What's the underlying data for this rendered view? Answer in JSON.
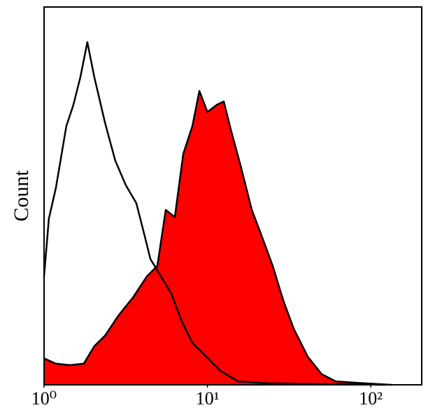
{
  "chart_data": {
    "type": "histogram-overlay",
    "y_label": "Count",
    "x_scale": "log",
    "xlim": [
      1,
      205
    ],
    "ylim": [
      0,
      100
    ],
    "xticks": [
      {
        "value": 1,
        "label": "10⁰"
      },
      {
        "value": 10,
        "label": "10¹"
      },
      {
        "value": 100,
        "label": "10²"
      }
    ],
    "grid": false,
    "series": [
      {
        "color": "#ff0000",
        "line_color": "#000000",
        "filled": true,
        "x": [
          1,
          1.18,
          1.44,
          1.75,
          2.03,
          2.36,
          2.87,
          3.5,
          4.26,
          4.94,
          5.56,
          6.32,
          7.11,
          8.09,
          8.93,
          10,
          11.4,
          12.6,
          13.9,
          16.1,
          18.7,
          21.7,
          25.1,
          29.2,
          33.8,
          41.2,
          50.1,
          61.1,
          90.6,
          134
        ],
        "values": [
          7.0,
          5.6,
          5.2,
          5.6,
          10.2,
          13,
          18.5,
          23.1,
          28.7,
          31.5,
          46.3,
          44.4,
          61.1,
          68.5,
          77.8,
          72.2,
          74.1,
          75,
          67.6,
          57.4,
          46.3,
          38.9,
          31.5,
          22.2,
          14.8,
          7.4,
          2.8,
          0.9,
          0.4,
          0
        ]
      },
      {
        "color": "#000000",
        "filled": false,
        "x": [
          1,
          1.07,
          1.18,
          1.37,
          1.51,
          1.67,
          1.84,
          2.03,
          2.36,
          2.73,
          3.17,
          3.67,
          4.06,
          4.48,
          5.19,
          6.02,
          6.98,
          8.09,
          9.86,
          12.0,
          15.4,
          22.8,
          45.4,
          122
        ],
        "values": [
          28.7,
          44,
          52,
          68.5,
          74,
          81.5,
          90.7,
          81.5,
          69.4,
          59.3,
          52.8,
          48.1,
          40.7,
          33.3,
          28.7,
          24.1,
          16.7,
          11.1,
          7.4,
          3.7,
          0.9,
          0.4,
          0.2,
          0
        ]
      }
    ]
  }
}
